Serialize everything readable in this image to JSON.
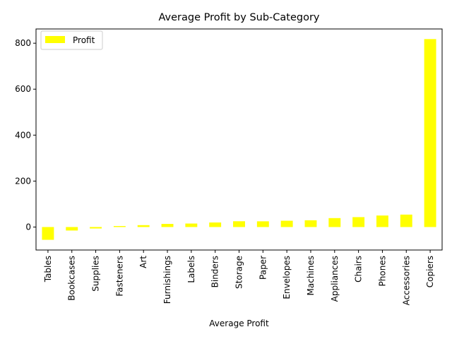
{
  "chart_data": {
    "type": "bar",
    "title": "Average Profit by Sub-Category",
    "xlabel": "Average Profit",
    "ylabel": "",
    "categories": [
      "Tables",
      "Bookcases",
      "Supplies",
      "Fasteners",
      "Art",
      "Furnishings",
      "Labels",
      "Binders",
      "Storage",
      "Paper",
      "Envelopes",
      "Machines",
      "Appliances",
      "Chairs",
      "Phones",
      "Accessories",
      "Copiers"
    ],
    "series": [
      {
        "name": "Profit",
        "color": "#ffff00",
        "values": [
          -55.6,
          -15.2,
          -6.3,
          4.4,
          8.2,
          13.6,
          15.2,
          19.8,
          25.2,
          24.9,
          27.4,
          29.4,
          38.9,
          43.1,
          50.1,
          54.1,
          817.9
        ]
      }
    ],
    "ylim": [
      -100,
      862
    ],
    "yticks": [
      0,
      200,
      400,
      600,
      800
    ],
    "legend": {
      "placement": "top-left",
      "entries": [
        "Profit"
      ]
    },
    "grid": false
  }
}
